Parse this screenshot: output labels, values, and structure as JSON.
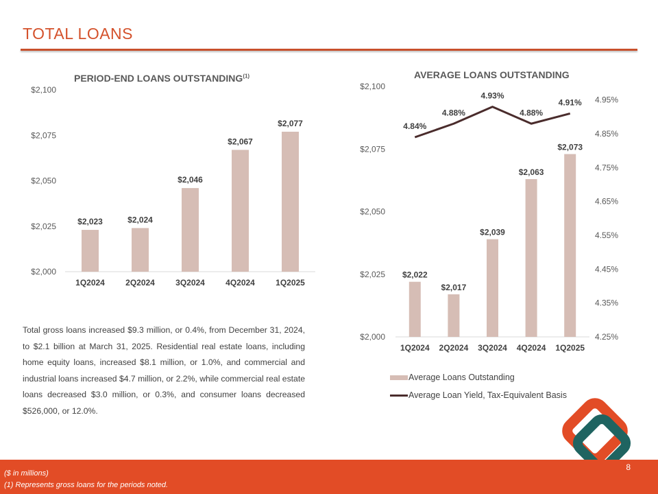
{
  "header": {
    "title": "TOTAL LOANS"
  },
  "left_chart_title": "PERIOD-END LOANS OUTSTANDING",
  "left_chart_footnote_mark": "(1)",
  "right_chart_title": "AVERAGE LOANS OUTSTANDING",
  "colors": {
    "accent": "#e24c26",
    "title": "#d4512b",
    "bar": "#d6bdb5",
    "line": "#4a2c2c"
  },
  "chart_data": [
    {
      "type": "bar",
      "title": "PERIOD-END LOANS OUTSTANDING(1)",
      "categories": [
        "1Q2024",
        "2Q2024",
        "3Q2024",
        "4Q2024",
        "1Q2025"
      ],
      "values": [
        2023,
        2024,
        2046,
        2067,
        2077
      ],
      "data_labels": [
        "$2,023",
        "$2,024",
        "$2,046",
        "$2,067",
        "$2,077"
      ],
      "ylim": [
        2000,
        2100
      ],
      "y_ticks": [
        "$2,000",
        "$2,025",
        "$2,050",
        "$2,075",
        "$2,100"
      ],
      "grid": false
    },
    {
      "type": "bar",
      "title": "AVERAGE LOANS OUTSTANDING",
      "categories": [
        "1Q2024",
        "2Q2024",
        "3Q2024",
        "4Q2024",
        "1Q2025"
      ],
      "series": [
        {
          "name": "Average Loans Outstanding",
          "type": "bar",
          "axis": "left",
          "values": [
            2022,
            2017,
            2039,
            2063,
            2073
          ],
          "data_labels": [
            "$2,022",
            "$2,017",
            "$2,039",
            "$2,063",
            "$2,073"
          ]
        },
        {
          "name": "Average Loan Yield, Tax-Equivalent Basis",
          "type": "line",
          "axis": "right",
          "values": [
            4.84,
            4.88,
            4.93,
            4.88,
            4.91
          ],
          "data_labels": [
            "4.84%",
            "4.88%",
            "4.93%",
            "4.88%",
            "4.91%"
          ]
        }
      ],
      "ylim": [
        2000,
        2100
      ],
      "y_ticks": [
        "$2,000",
        "$2,025",
        "$2,050",
        "$2,075",
        "$2,100"
      ],
      "y2lim": [
        4.25,
        4.99
      ],
      "y2_ticks": [
        "4.25%",
        "4.35%",
        "4.45%",
        "4.55%",
        "4.65%",
        "4.75%",
        "4.85%",
        "4.95%"
      ],
      "legend_position": "bottom",
      "grid": false
    }
  ],
  "body_text": "Total gross loans increased $9.3 million, or 0.4%, from December 31, 2024, to $2.1 billion at March 31, 2025. Residential real estate loans, including home equity loans, increased $8.1 million, or 1.0%, and commercial and industrial loans increased $4.7 million, or 2.2%, while commercial real estate loans decreased $3.0 million, or 0.3%, and consumer loans decreased $526,000, or 12.0%.",
  "footer": {
    "units_note": "($ in millions)",
    "footnote": "(1) Represents gross loans for the periods noted.",
    "page_number": "8"
  }
}
